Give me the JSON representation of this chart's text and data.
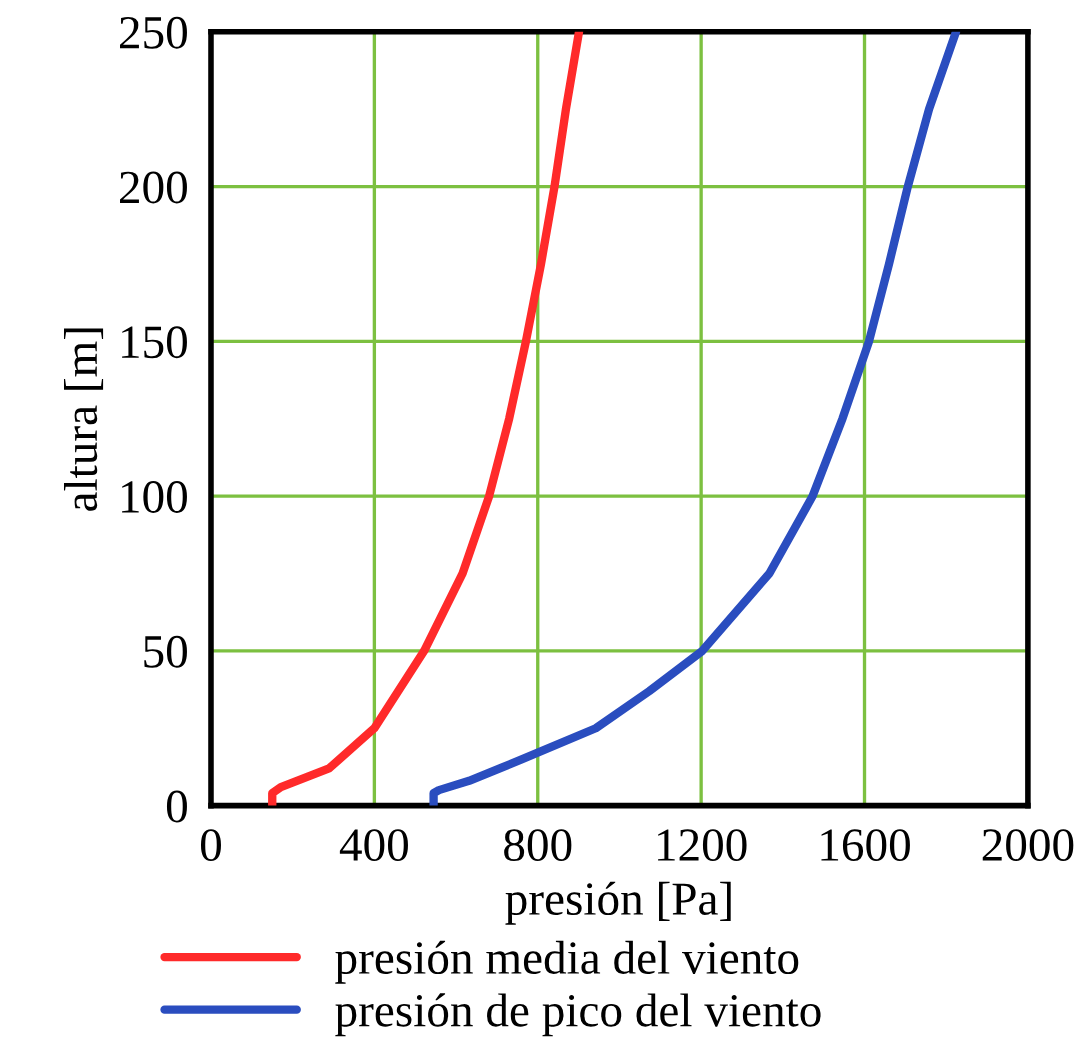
{
  "chart_data": {
    "type": "line",
    "xlabel": "presión [Pa]",
    "ylabel": "altura [m]",
    "xlim": [
      0,
      2000
    ],
    "ylim": [
      0,
      250
    ],
    "xticks": [
      0,
      400,
      800,
      1200,
      1600,
      2000
    ],
    "yticks": [
      0,
      50,
      100,
      150,
      200,
      250
    ],
    "grid": true,
    "legend": "bottom",
    "marker": "none",
    "line_style": "solid",
    "series": [
      {
        "name": "presión media del viento",
        "color": "#ff2a2a",
        "x": [
          150,
          150,
          171,
          289,
          400,
          522,
          616,
          681,
          730,
          771,
          808,
          841,
          869,
          901
        ],
        "values": [
          0,
          4,
          6,
          12,
          25,
          50,
          75,
          100,
          125,
          150,
          175,
          200,
          225,
          250
        ]
      },
      {
        "name": "presión de pico del viento",
        "color": "#2a4dbf",
        "x": [
          545,
          545,
          558,
          632,
          762,
          942,
          1073,
          1203,
          1367,
          1473,
          1546,
          1611,
          1660,
          1706,
          1758,
          1824
        ],
        "values": [
          0,
          4,
          5,
          8,
          15,
          25,
          37,
          50,
          75,
          100,
          125,
          150,
          175,
          200,
          225,
          250
        ]
      }
    ]
  }
}
